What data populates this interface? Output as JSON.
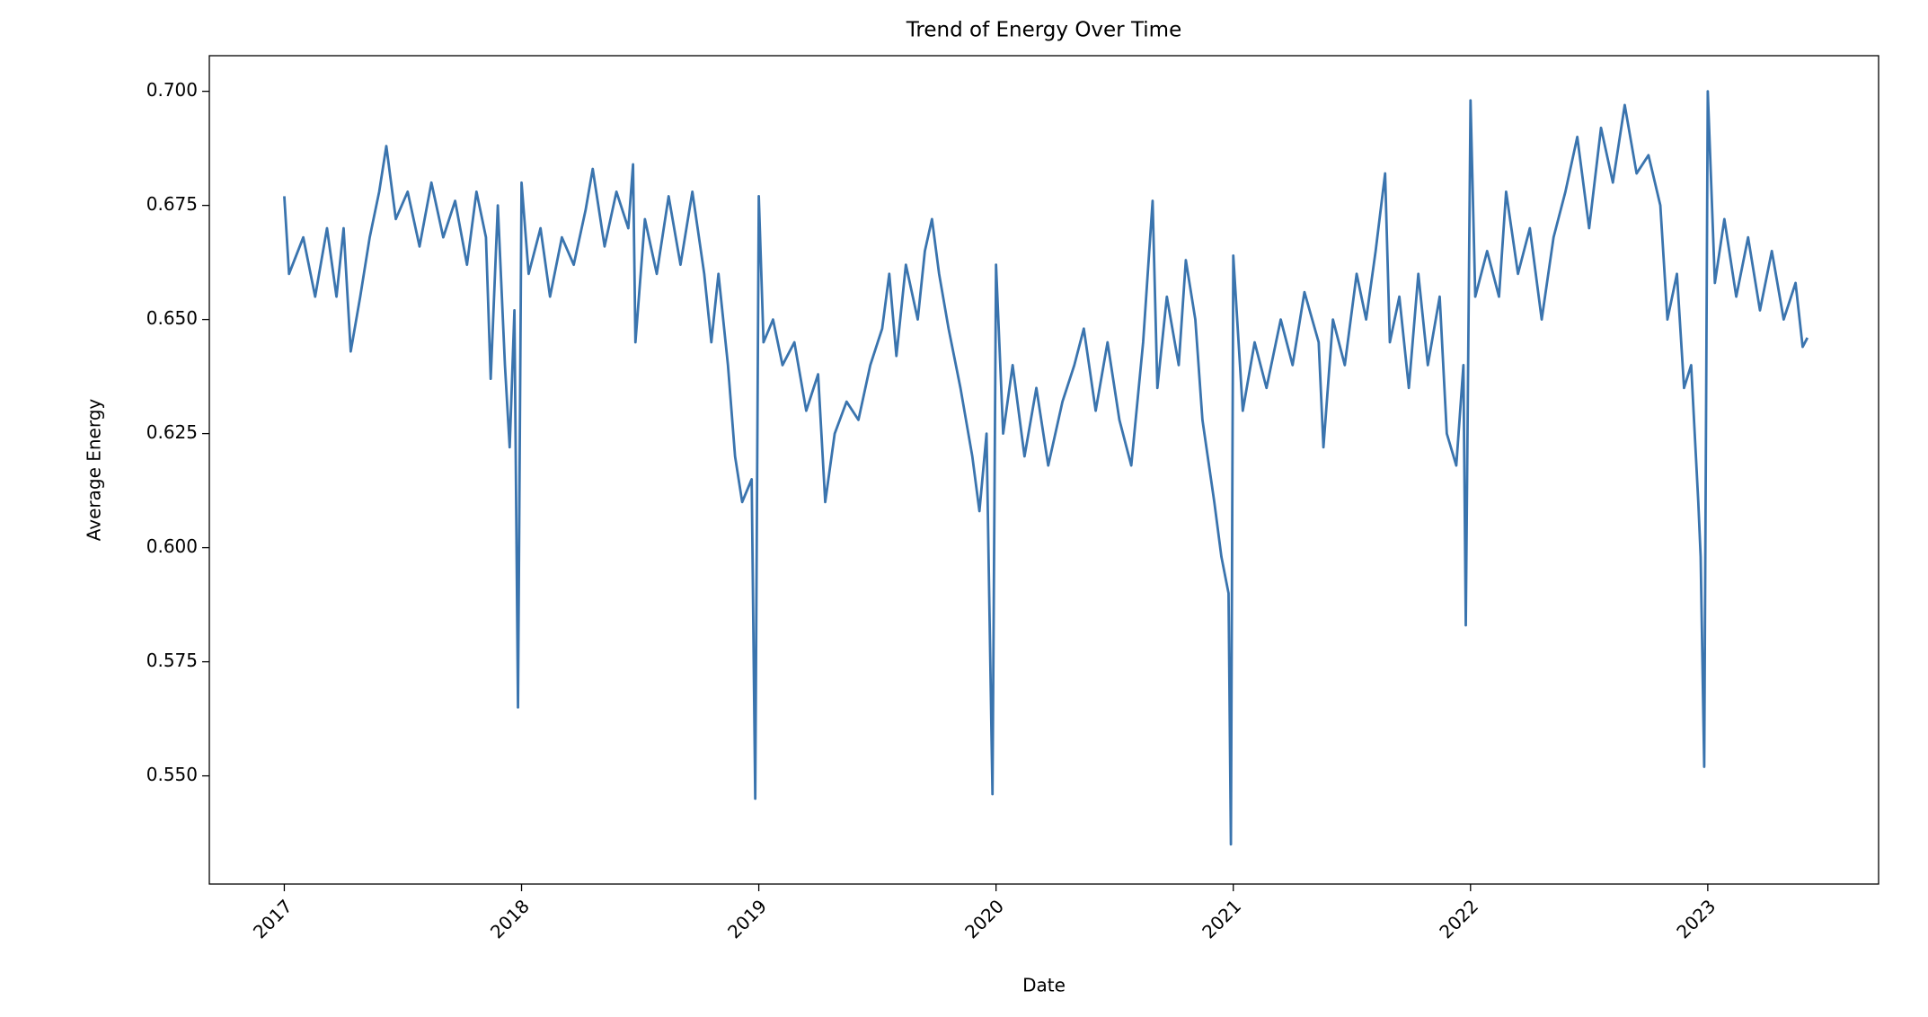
{
  "chart_data": {
    "type": "line",
    "title": "Trend of Energy Over Time",
    "xlabel": "Date",
    "ylabel": "Average Energy",
    "color": "#3a74ae",
    "xlim": [
      2016.684,
      2023.72
    ],
    "ylim": [
      0.5263,
      0.7078
    ],
    "xticks": [
      2017,
      2018,
      2019,
      2020,
      2021,
      2022,
      2023
    ],
    "yticks": [
      {
        "value": 0.55,
        "label": "0.550"
      },
      {
        "value": 0.575,
        "label": "0.575"
      },
      {
        "value": 0.6,
        "label": "0.600"
      },
      {
        "value": 0.625,
        "label": "0.625"
      },
      {
        "value": 0.65,
        "label": "0.650"
      },
      {
        "value": 0.675,
        "label": "0.675"
      },
      {
        "value": 0.7,
        "label": "0.700"
      }
    ],
    "x": [
      2017.0,
      2017.02,
      2017.08,
      2017.13,
      2017.18,
      2017.22,
      2017.25,
      2017.28,
      2017.32,
      2017.36,
      2017.4,
      2017.43,
      2017.47,
      2017.52,
      2017.57,
      2017.62,
      2017.67,
      2017.72,
      2017.77,
      2017.81,
      2017.85,
      2017.87,
      2017.9,
      2017.93,
      2017.95,
      2017.97,
      2017.985,
      2018.0,
      2018.03,
      2018.08,
      2018.12,
      2018.17,
      2018.22,
      2018.27,
      2018.3,
      2018.35,
      2018.4,
      2018.45,
      2018.47,
      2018.48,
      2018.52,
      2018.57,
      2018.62,
      2018.67,
      2018.72,
      2018.77,
      2018.8,
      2018.83,
      2018.87,
      2018.9,
      2018.93,
      2018.97,
      2018.985,
      2019.0,
      2019.02,
      2019.06,
      2019.1,
      2019.15,
      2019.2,
      2019.25,
      2019.28,
      2019.32,
      2019.37,
      2019.42,
      2019.47,
      2019.52,
      2019.55,
      2019.58,
      2019.62,
      2019.67,
      2019.7,
      2019.73,
      2019.76,
      2019.8,
      2019.85,
      2019.9,
      2019.93,
      2019.96,
      2019.985,
      2020.0,
      2020.03,
      2020.07,
      2020.12,
      2020.17,
      2020.22,
      2020.28,
      2020.33,
      2020.37,
      2020.42,
      2020.47,
      2020.52,
      2020.57,
      2020.62,
      2020.66,
      2020.68,
      2020.72,
      2020.77,
      2020.8,
      2020.84,
      2020.87,
      2020.92,
      2020.95,
      2020.98,
      2020.99,
      2021.0,
      2021.04,
      2021.09,
      2021.14,
      2021.2,
      2021.25,
      2021.3,
      2021.36,
      2021.38,
      2021.42,
      2021.47,
      2021.52,
      2021.56,
      2021.6,
      2021.64,
      2021.66,
      2021.7,
      2021.74,
      2021.78,
      2021.82,
      2021.87,
      2021.9,
      2021.94,
      2021.97,
      2021.98,
      2022.0,
      2022.02,
      2022.07,
      2022.12,
      2022.15,
      2022.2,
      2022.25,
      2022.3,
      2022.35,
      2022.4,
      2022.45,
      2022.5,
      2022.55,
      2022.6,
      2022.65,
      2022.7,
      2022.75,
      2022.8,
      2022.83,
      2022.87,
      2022.9,
      2022.93,
      2022.96,
      2022.97,
      2022.985,
      2023.0,
      2023.03,
      2023.07,
      2023.12,
      2023.17,
      2023.22,
      2023.27,
      2023.32,
      2023.37,
      2023.4,
      2023.42
    ],
    "values": [
      0.677,
      0.66,
      0.668,
      0.655,
      0.67,
      0.655,
      0.67,
      0.643,
      0.655,
      0.668,
      0.678,
      0.688,
      0.672,
      0.678,
      0.666,
      0.68,
      0.668,
      0.676,
      0.662,
      0.678,
      0.668,
      0.637,
      0.675,
      0.64,
      0.622,
      0.652,
      0.565,
      0.68,
      0.66,
      0.67,
      0.655,
      0.668,
      0.662,
      0.674,
      0.683,
      0.666,
      0.678,
      0.67,
      0.684,
      0.645,
      0.672,
      0.66,
      0.677,
      0.662,
      0.678,
      0.66,
      0.645,
      0.66,
      0.64,
      0.62,
      0.61,
      0.615,
      0.545,
      0.677,
      0.645,
      0.65,
      0.64,
      0.645,
      0.63,
      0.638,
      0.61,
      0.625,
      0.632,
      0.628,
      0.64,
      0.648,
      0.66,
      0.642,
      0.662,
      0.65,
      0.665,
      0.672,
      0.66,
      0.648,
      0.635,
      0.62,
      0.608,
      0.625,
      0.546,
      0.662,
      0.625,
      0.64,
      0.62,
      0.635,
      0.618,
      0.632,
      0.64,
      0.648,
      0.63,
      0.645,
      0.628,
      0.618,
      0.645,
      0.676,
      0.635,
      0.655,
      0.64,
      0.663,
      0.65,
      0.628,
      0.61,
      0.598,
      0.59,
      0.535,
      0.664,
      0.63,
      0.645,
      0.635,
      0.65,
      0.64,
      0.656,
      0.645,
      0.622,
      0.65,
      0.64,
      0.66,
      0.65,
      0.665,
      0.682,
      0.645,
      0.655,
      0.635,
      0.66,
      0.64,
      0.655,
      0.625,
      0.618,
      0.64,
      0.583,
      0.698,
      0.655,
      0.665,
      0.655,
      0.678,
      0.66,
      0.67,
      0.65,
      0.668,
      0.678,
      0.69,
      0.67,
      0.692,
      0.68,
      0.697,
      0.682,
      0.686,
      0.675,
      0.65,
      0.66,
      0.635,
      0.64,
      0.61,
      0.598,
      0.552,
      0.7,
      0.658,
      0.672,
      0.655,
      0.668,
      0.652,
      0.665,
      0.65,
      0.658,
      0.644,
      0.646
    ]
  }
}
